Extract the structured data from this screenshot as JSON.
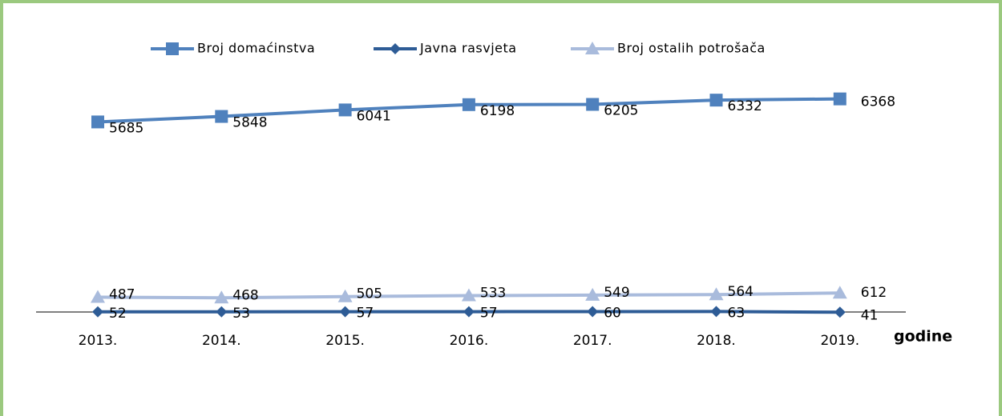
{
  "chart_data": {
    "type": "line",
    "categories": [
      "2013.",
      "2014.",
      "2015.",
      "2016.",
      "2017.",
      "2018.",
      "2019."
    ],
    "x_label": "godine",
    "ylim": [
      0,
      7000
    ],
    "legend": "top",
    "series": [
      {
        "name": "Broj domaćinstva",
        "color": "#4f81bd",
        "marker": "square",
        "values": [
          5685,
          5848,
          6041,
          6198,
          6205,
          6332,
          6368
        ]
      },
      {
        "name": "Javna rasvjeta",
        "color": "#2e5c96",
        "marker": "diamond",
        "values": [
          52,
          53,
          57,
          57,
          60,
          63,
          41
        ]
      },
      {
        "name": "Broj ostalih potrošača",
        "color": "#a9bbdc",
        "marker": "triangle",
        "values": [
          487,
          468,
          505,
          533,
          549,
          564,
          612
        ]
      }
    ]
  }
}
